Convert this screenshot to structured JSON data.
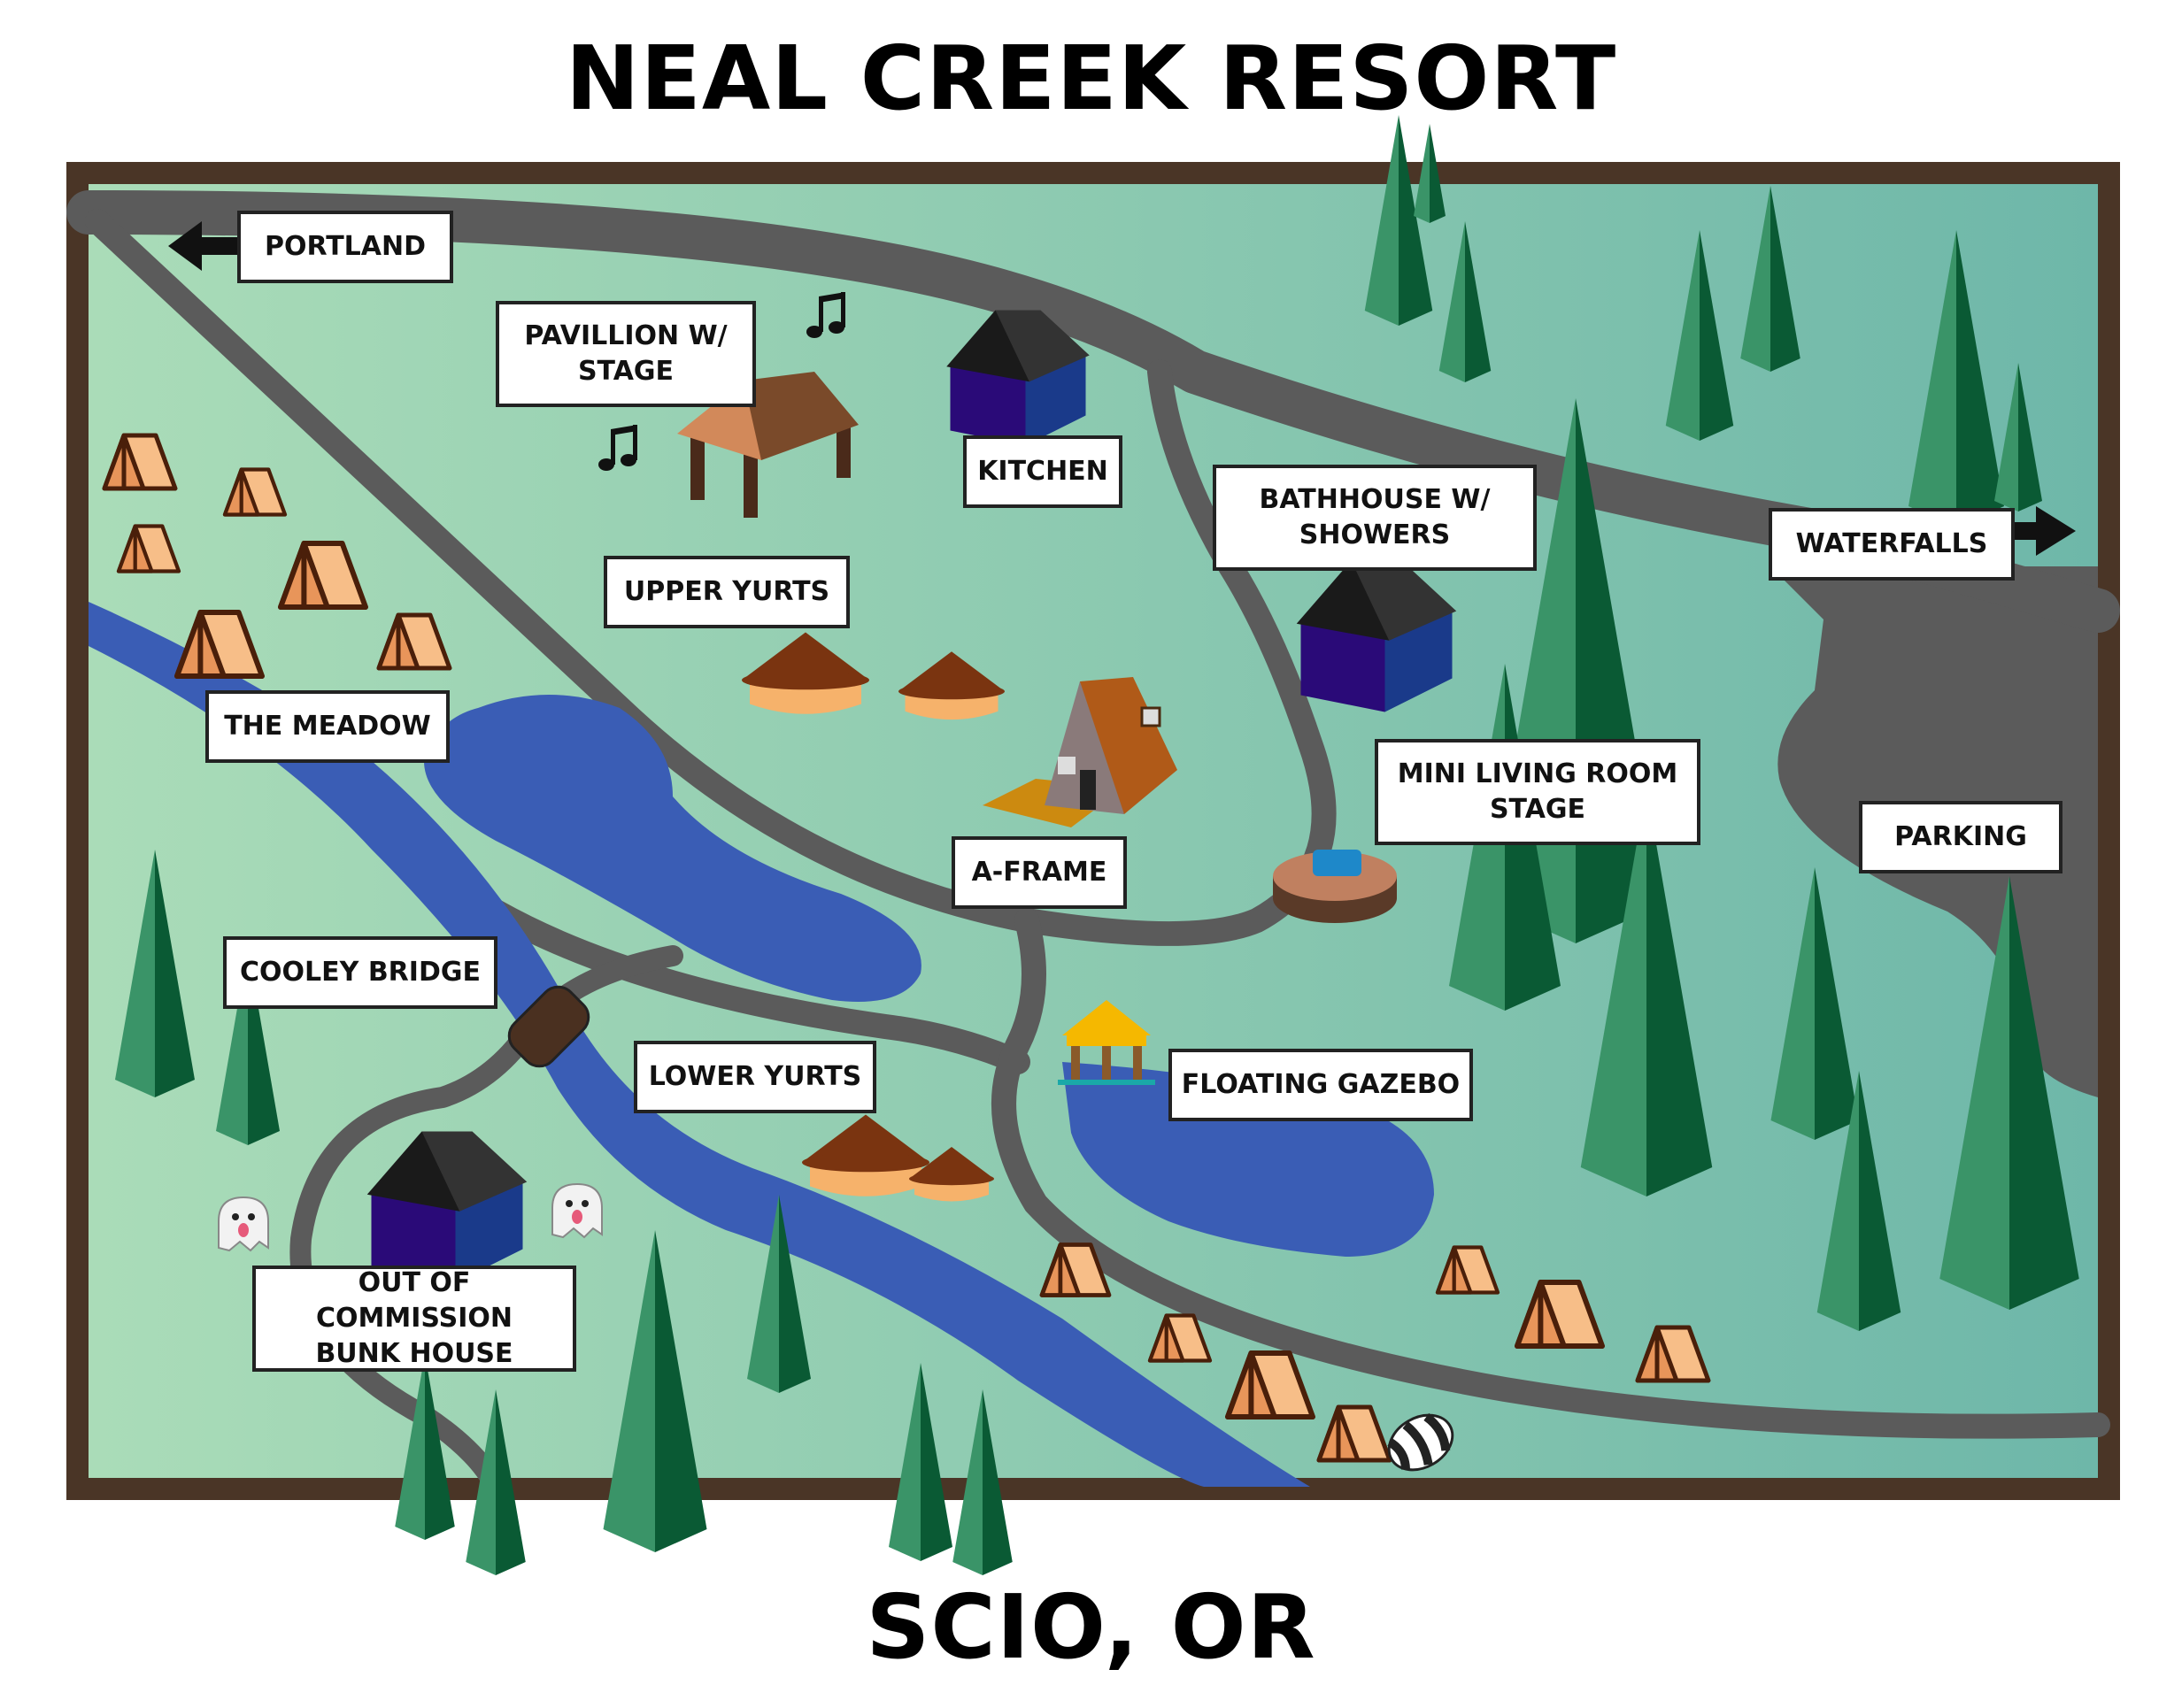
{
  "title": "NEAL CREEK RESORT",
  "subtitle": "SCIO, OR",
  "labels": {
    "portland": "PORTLAND",
    "pavilion": "PAVILLION W/\nSTAGE",
    "kitchen": "KITCHEN",
    "bathhouse": "BATHHOUSE W/\nSHOWERS",
    "waterfalls": "WATERFALLS",
    "upper_yurts": "UPPER YURTS",
    "the_meadow": "THE MEADOW",
    "a_frame": "A-FRAME",
    "mini_living_room": "MINI LIVING ROOM\nSTAGE",
    "parking": "PARKING",
    "cooley_bridge": "COOLEY BRIDGE",
    "lower_yurts": "LOWER YURTS",
    "floating_gazebo": "FLOATING GAZEBO",
    "bunk_house": "OUT OF COMMISSION\nBUNK HOUSE"
  },
  "icons": [
    "music-note-icon",
    "ghost-icon",
    "raccoon-tail-icon",
    "tent-icon",
    "tree-icon",
    "arrow-left-icon",
    "arrow-right-icon"
  ],
  "colors": {
    "frame": "#4a3526",
    "grass_light": "#a8dcb6",
    "grass_dark": "#6fb8a8",
    "road": "#5b5b5b",
    "water": "#3a5db5",
    "tree_light": "#3a9468",
    "tree_dark": "#0a5a34",
    "building_wall": "#2a0a78",
    "building_roof": "#2a2a2a",
    "tent": "#f7be88",
    "yurt_roof": "#7a3410",
    "yurt_wall": "#f6b26b"
  }
}
